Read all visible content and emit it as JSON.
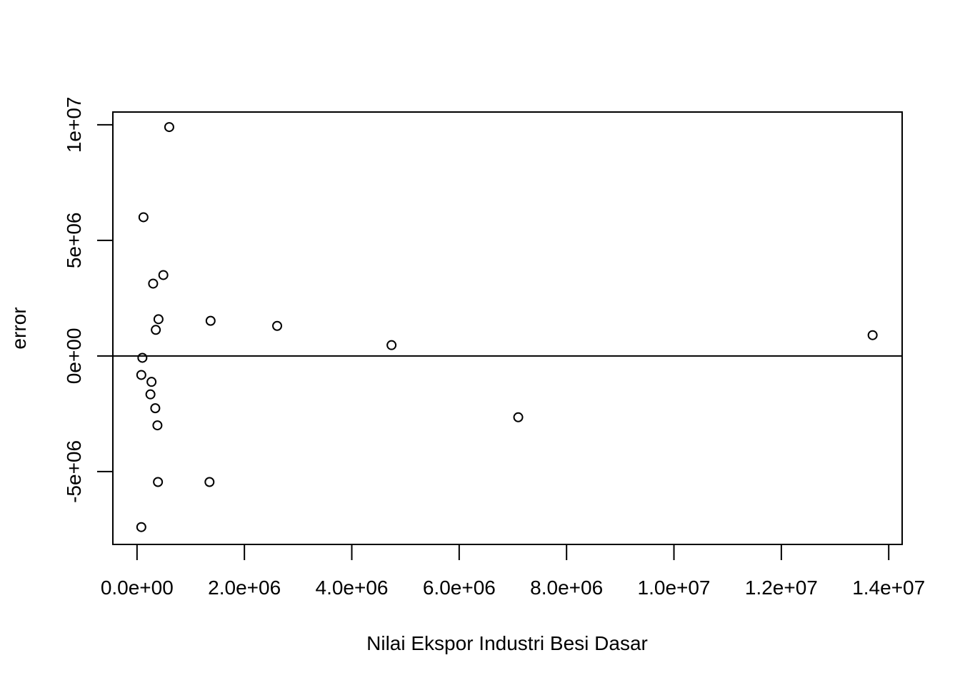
{
  "chart_data": {
    "type": "scatter",
    "title": "",
    "xlabel": "Nilai Ekspor Industri Besi Dasar",
    "ylabel": "error",
    "xlim": [
      -450000,
      14250000
    ],
    "ylim": [
      -8150000,
      10550000
    ],
    "x_ticks": [
      {
        "value": 0,
        "label": "0.0e+00"
      },
      {
        "value": 2000000,
        "label": "2.0e+06"
      },
      {
        "value": 4000000,
        "label": "4.0e+06"
      },
      {
        "value": 6000000,
        "label": "6.0e+06"
      },
      {
        "value": 8000000,
        "label": "8.0e+06"
      },
      {
        "value": 10000000,
        "label": "1.0e+07"
      },
      {
        "value": 12000000,
        "label": "1.2e+07"
      },
      {
        "value": 14000000,
        "label": "1.4e+07"
      }
    ],
    "y_ticks": [
      {
        "value": -5000000,
        "label": "-5e+06"
      },
      {
        "value": 0,
        "label": "0e+00"
      },
      {
        "value": 5000000,
        "label": "5e+06"
      },
      {
        "value": 10000000,
        "label": "1e+07"
      }
    ],
    "reference_line_y": 0,
    "grid": false,
    "legend": "none",
    "marker": "open-circle",
    "points": [
      {
        "x": 600000,
        "y": 9900000
      },
      {
        "x": 120000,
        "y": 6000000
      },
      {
        "x": 490000,
        "y": 3500000
      },
      {
        "x": 300000,
        "y": 3130000
      },
      {
        "x": 400000,
        "y": 1590000
      },
      {
        "x": 350000,
        "y": 1130000
      },
      {
        "x": 1370000,
        "y": 1520000
      },
      {
        "x": 2610000,
        "y": 1300000
      },
      {
        "x": 4740000,
        "y": 470000
      },
      {
        "x": 13700000,
        "y": 900000
      },
      {
        "x": 100000,
        "y": -80000
      },
      {
        "x": 80000,
        "y": -820000
      },
      {
        "x": 270000,
        "y": -1120000
      },
      {
        "x": 250000,
        "y": -1660000
      },
      {
        "x": 340000,
        "y": -2260000
      },
      {
        "x": 380000,
        "y": -3000000
      },
      {
        "x": 7100000,
        "y": -2650000
      },
      {
        "x": 390000,
        "y": -5450000
      },
      {
        "x": 1350000,
        "y": -5450000
      },
      {
        "x": 80000,
        "y": -7400000
      }
    ]
  }
}
